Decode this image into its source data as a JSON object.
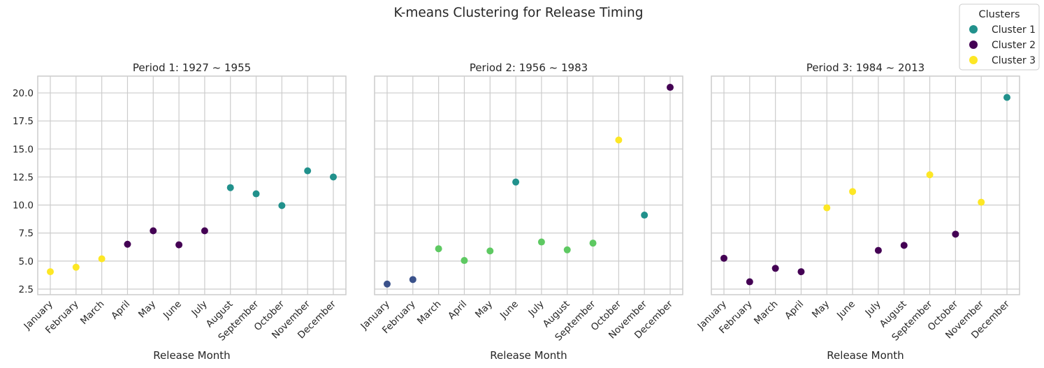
{
  "chart_data": {
    "type": "scatter",
    "title": "K-means Clustering for Release Timing",
    "legend": {
      "title": "Clusters",
      "placement": "top-right",
      "entries": [
        {
          "label": "Cluster 1",
          "color": "#21918c"
        },
        {
          "label": "Cluster 2",
          "color": "#440154"
        },
        {
          "label": "Cluster 3",
          "color": "#fde725"
        }
      ]
    },
    "ylim": [
      2.0,
      21.5
    ],
    "yticks": [
      2.5,
      5.0,
      7.5,
      10.0,
      12.5,
      15.0,
      17.5,
      20.0
    ],
    "ytick_labels": [
      "2.5",
      "5.0",
      "7.5",
      "10.0",
      "12.5",
      "15.0",
      "17.5",
      "20.0"
    ],
    "grid": true,
    "panels": [
      {
        "title": "Period 1: 1927 ~ 1955",
        "xlabel": "Release Month",
        "categories": [
          "January",
          "February",
          "March",
          "April",
          "May",
          "June",
          "July",
          "August",
          "September",
          "October",
          "November",
          "December"
        ],
        "values": [
          4.05,
          4.45,
          5.2,
          6.5,
          7.7,
          6.45,
          7.7,
          11.55,
          11.0,
          9.95,
          13.05,
          12.5
        ],
        "colors": [
          "#fde725",
          "#fde725",
          "#fde725",
          "#440154",
          "#440154",
          "#440154",
          "#440154",
          "#21918c",
          "#21918c",
          "#21918c",
          "#21918c",
          "#21918c"
        ]
      },
      {
        "title": "Period 2: 1956 ~ 1983",
        "xlabel": "Release Month",
        "categories": [
          "January",
          "February",
          "March",
          "April",
          "May",
          "June",
          "July",
          "August",
          "September",
          "October",
          "November",
          "December"
        ],
        "values": [
          2.95,
          3.35,
          6.1,
          5.05,
          5.9,
          12.05,
          6.7,
          6.0,
          6.6,
          15.8,
          9.1,
          20.5
        ],
        "colors": [
          "#3b528b",
          "#3b528b",
          "#5ec962",
          "#5ec962",
          "#5ec962",
          "#21918c",
          "#5ec962",
          "#5ec962",
          "#5ec962",
          "#fde725",
          "#21918c",
          "#440154"
        ]
      },
      {
        "title": "Period 3: 1984 ~ 2013",
        "xlabel": "Release Month",
        "categories": [
          "January",
          "February",
          "March",
          "April",
          "May",
          "June",
          "July",
          "August",
          "September",
          "October",
          "November",
          "December"
        ],
        "values": [
          5.25,
          3.15,
          4.35,
          4.05,
          9.75,
          11.2,
          5.95,
          6.4,
          12.7,
          7.4,
          10.25,
          19.6
        ],
        "colors": [
          "#440154",
          "#440154",
          "#440154",
          "#440154",
          "#fde725",
          "#fde725",
          "#440154",
          "#440154",
          "#fde725",
          "#440154",
          "#fde725",
          "#21918c"
        ]
      }
    ]
  }
}
